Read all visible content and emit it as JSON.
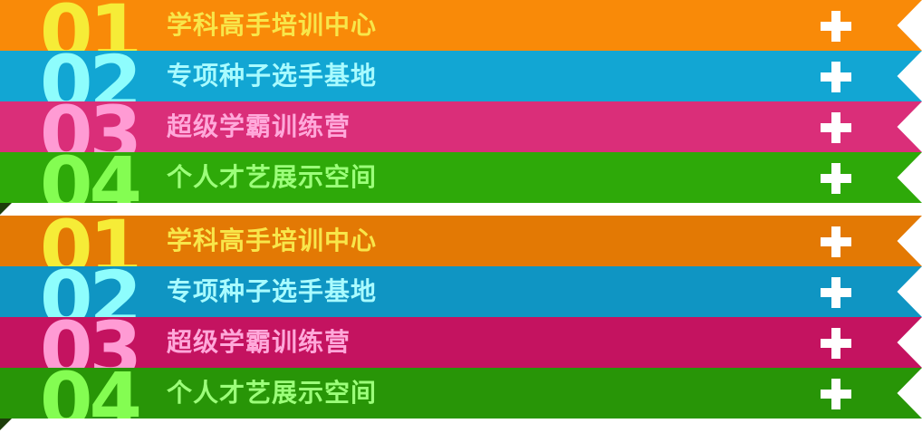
{
  "colors": {
    "orange": "#f98a08",
    "blue": "#12a6d3",
    "pink": "#da2e79",
    "green": "#2ea909",
    "orange_dark": "#e37904",
    "blue_dark": "#0f95c3",
    "pink_dark": "#c41360",
    "green_dark": "#289507",
    "num_orange": "#f6ec37",
    "num_blue": "#8efdfd",
    "num_pink": "#ff9bd4",
    "num_green": "#84fd52",
    "text_orange": "#f8e64a",
    "text_blue": "#a9fbff",
    "text_pink": "#ffa8da",
    "text_green": "#9cff7a",
    "plus": "#ffffff"
  },
  "menu_group_1": {
    "items": [
      {
        "number": "01",
        "label": "学科高手培训中心",
        "icon": "plus-icon"
      },
      {
        "number": "02",
        "label": "专项种子选手基地",
        "icon": "plus-icon"
      },
      {
        "number": "03",
        "label": "超级学霸训练营",
        "icon": "plus-icon"
      },
      {
        "number": "04",
        "label": "个人才艺展示空间",
        "icon": "plus-icon"
      }
    ]
  },
  "menu_group_2": {
    "items": [
      {
        "number": "01",
        "label": "学科高手培训中心",
        "icon": "plus-icon"
      },
      {
        "number": "02",
        "label": "专项种子选手基地",
        "icon": "plus-icon"
      },
      {
        "number": "03",
        "label": "超级学霸训练营",
        "icon": "plus-icon"
      },
      {
        "number": "04",
        "label": "个人才艺展示空间",
        "icon": "plus-icon"
      }
    ]
  }
}
